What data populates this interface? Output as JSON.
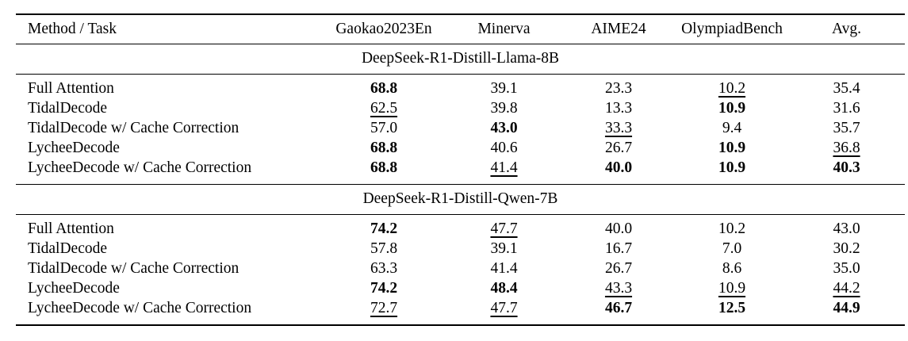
{
  "colors": {
    "text": "#000000",
    "background": "#ffffff",
    "rule": "#000000"
  },
  "table": {
    "columns": [
      "Method / Task",
      "Gaokao2023En",
      "Minerva",
      "AIME24",
      "OlympiadBench",
      "Avg."
    ],
    "sections": [
      {
        "title": "DeepSeek-R1-Distill-Llama-8B",
        "rows": [
          {
            "method": "Full Attention",
            "values": [
              "68.8",
              "39.1",
              "23.3",
              "10.2",
              "35.4"
            ],
            "styles": [
              "bold",
              "plain",
              "plain",
              "underline",
              "plain"
            ]
          },
          {
            "method": "TidalDecode",
            "values": [
              "62.5",
              "39.8",
              "13.3",
              "10.9",
              "31.6"
            ],
            "styles": [
              "underline",
              "plain",
              "plain",
              "bold",
              "plain"
            ]
          },
          {
            "method": "TidalDecode w/ Cache Correction",
            "values": [
              "57.0",
              "43.0",
              "33.3",
              "9.4",
              "35.7"
            ],
            "styles": [
              "plain",
              "bold",
              "underline",
              "plain",
              "plain"
            ]
          },
          {
            "method": "LycheeDecode",
            "values": [
              "68.8",
              "40.6",
              "26.7",
              "10.9",
              "36.8"
            ],
            "styles": [
              "bold",
              "plain",
              "plain",
              "bold",
              "underline"
            ]
          },
          {
            "method": "LycheeDecode w/ Cache Correction",
            "values": [
              "68.8",
              "41.4",
              "40.0",
              "10.9",
              "40.3"
            ],
            "styles": [
              "bold",
              "underline",
              "bold",
              "bold",
              "bold"
            ]
          }
        ]
      },
      {
        "title": "DeepSeek-R1-Distill-Qwen-7B",
        "rows": [
          {
            "method": "Full Attention",
            "values": [
              "74.2",
              "47.7",
              "40.0",
              "10.2",
              "43.0"
            ],
            "styles": [
              "bold",
              "underline",
              "plain",
              "plain",
              "plain"
            ]
          },
          {
            "method": "TidalDecode",
            "values": [
              "57.8",
              "39.1",
              "16.7",
              "7.0",
              "30.2"
            ],
            "styles": [
              "plain",
              "plain",
              "plain",
              "plain",
              "plain"
            ]
          },
          {
            "method": "TidalDecode w/ Cache Correction",
            "values": [
              "63.3",
              "41.4",
              "26.7",
              "8.6",
              "35.0"
            ],
            "styles": [
              "plain",
              "plain",
              "plain",
              "plain",
              "plain"
            ]
          },
          {
            "method": "LycheeDecode",
            "values": [
              "74.2",
              "48.4",
              "43.3",
              "10.9",
              "44.2"
            ],
            "styles": [
              "bold",
              "bold",
              "underline",
              "underline",
              "underline"
            ]
          },
          {
            "method": "LycheeDecode w/ Cache Correction",
            "values": [
              "72.7",
              "47.7",
              "46.7",
              "12.5",
              "44.9"
            ],
            "styles": [
              "underline",
              "underline",
              "bold",
              "bold",
              "bold"
            ]
          }
        ]
      }
    ]
  }
}
